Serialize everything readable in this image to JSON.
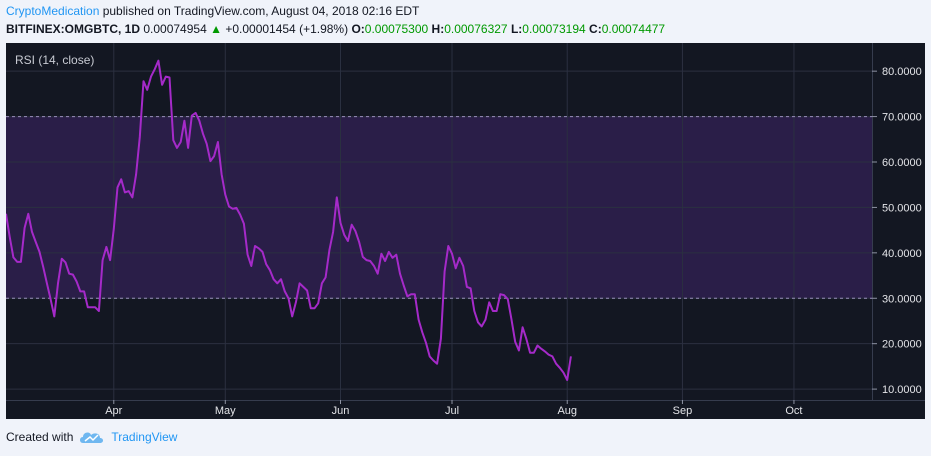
{
  "header": {
    "author": "CryptoMedication",
    "published_text": " published on TradingView.com, August 04, 2018 02:16 EDT"
  },
  "ticker": {
    "symbol": "BITFINEX:OMGBTC, 1D",
    "last": "0.00074954",
    "change": "+0.00001454 (+1.98%)",
    "open_label": "O:",
    "open": "0.00075300",
    "high_label": "H:",
    "high": "0.00076327",
    "low_label": "L:",
    "low": "0.00073194",
    "close_label": "C:",
    "close": "0.00074477"
  },
  "footer": {
    "created_with": "Created with",
    "brand": "TradingView"
  },
  "colors": {
    "background": "#131722",
    "band": "#2a1e48",
    "line": "#a52ac9",
    "grid": "#2b3040",
    "up": "#009900",
    "brand": "#2196f3"
  },
  "chart_data": {
    "type": "line",
    "indicator_label": "RSI (14, close)",
    "y_ticks": [
      "80.0000",
      "70.0000",
      "60.0000",
      "50.0000",
      "40.0000",
      "30.0000",
      "20.0000",
      "10.0000"
    ],
    "ylim": [
      7.6,
      86.2
    ],
    "band": [
      30,
      70
    ],
    "x_ticks": [
      {
        "label": "Apr",
        "date": "2018-04-01"
      },
      {
        "label": "May",
        "date": "2018-05-01"
      },
      {
        "label": "Jun",
        "date": "2018-06-01"
      },
      {
        "label": "Jul",
        "date": "2018-07-01"
      },
      {
        "label": "Aug",
        "date": "2018-08-01"
      },
      {
        "label": "Sep",
        "date": "2018-09-01"
      },
      {
        "label": "Oct",
        "date": "2018-10-01"
      }
    ],
    "xlim": [
      "2018-03-03",
      "2018-10-22"
    ],
    "grid": true,
    "series": [
      {
        "values": [
          {
            "x": "2018-03-03",
            "y": 48.6
          },
          {
            "x": "2018-03-04",
            "y": 43.5
          },
          {
            "x": "2018-03-05",
            "y": 39.0
          },
          {
            "x": "2018-03-06",
            "y": 38.0
          },
          {
            "x": "2018-03-07",
            "y": 38.0
          },
          {
            "x": "2018-03-08",
            "y": 45.5
          },
          {
            "x": "2018-03-09",
            "y": 48.6
          },
          {
            "x": "2018-03-10",
            "y": 44.6
          },
          {
            "x": "2018-03-11",
            "y": 42.4
          },
          {
            "x": "2018-03-12",
            "y": 40.2
          },
          {
            "x": "2018-03-13",
            "y": 36.9
          },
          {
            "x": "2018-03-14",
            "y": 33.3
          },
          {
            "x": "2018-03-15",
            "y": 29.8
          },
          {
            "x": "2018-03-16",
            "y": 26.0
          },
          {
            "x": "2018-03-17",
            "y": 33.3
          },
          {
            "x": "2018-03-18",
            "y": 38.7
          },
          {
            "x": "2018-03-19",
            "y": 37.9
          },
          {
            "x": "2018-03-20",
            "y": 35.4
          },
          {
            "x": "2018-03-21",
            "y": 35.2
          },
          {
            "x": "2018-03-22",
            "y": 33.7
          },
          {
            "x": "2018-03-23",
            "y": 31.5
          },
          {
            "x": "2018-03-24",
            "y": 31.5
          },
          {
            "x": "2018-03-25",
            "y": 28.0
          },
          {
            "x": "2018-03-26",
            "y": 28.0
          },
          {
            "x": "2018-03-27",
            "y": 28.0
          },
          {
            "x": "2018-03-28",
            "y": 27.2
          },
          {
            "x": "2018-03-29",
            "y": 38.4
          },
          {
            "x": "2018-03-30",
            "y": 41.3
          },
          {
            "x": "2018-03-31",
            "y": 38.4
          },
          {
            "x": "2018-04-01",
            "y": 45.3
          },
          {
            "x": "2018-04-02",
            "y": 54.4
          },
          {
            "x": "2018-04-03",
            "y": 56.2
          },
          {
            "x": "2018-04-04",
            "y": 53.3
          },
          {
            "x": "2018-04-05",
            "y": 53.6
          },
          {
            "x": "2018-04-06",
            "y": 52.2
          },
          {
            "x": "2018-04-07",
            "y": 57.3
          },
          {
            "x": "2018-04-08",
            "y": 65.5
          },
          {
            "x": "2018-04-09",
            "y": 77.8
          },
          {
            "x": "2018-04-10",
            "y": 75.9
          },
          {
            "x": "2018-04-11",
            "y": 78.8
          },
          {
            "x": "2018-04-12",
            "y": 80.4
          },
          {
            "x": "2018-04-13",
            "y": 82.3
          },
          {
            "x": "2018-04-14",
            "y": 77.0
          },
          {
            "x": "2018-04-15",
            "y": 78.8
          },
          {
            "x": "2018-04-16",
            "y": 78.6
          },
          {
            "x": "2018-04-17",
            "y": 64.8
          },
          {
            "x": "2018-04-18",
            "y": 63.1
          },
          {
            "x": "2018-04-19",
            "y": 64.4
          },
          {
            "x": "2018-04-20",
            "y": 69.1
          },
          {
            "x": "2018-04-21",
            "y": 63.1
          },
          {
            "x": "2018-04-22",
            "y": 70.2
          },
          {
            "x": "2018-04-23",
            "y": 70.8
          },
          {
            "x": "2018-04-24",
            "y": 69.1
          },
          {
            "x": "2018-04-25",
            "y": 66.2
          },
          {
            "x": "2018-04-26",
            "y": 64.0
          },
          {
            "x": "2018-04-27",
            "y": 60.2
          },
          {
            "x": "2018-04-28",
            "y": 61.3
          },
          {
            "x": "2018-04-29",
            "y": 64.4
          },
          {
            "x": "2018-04-30",
            "y": 57.3
          },
          {
            "x": "2018-05-01",
            "y": 52.8
          },
          {
            "x": "2018-05-02",
            "y": 50.2
          },
          {
            "x": "2018-05-03",
            "y": 49.7
          },
          {
            "x": "2018-05-04",
            "y": 49.9
          },
          {
            "x": "2018-05-05",
            "y": 48.4
          },
          {
            "x": "2018-05-06",
            "y": 46.4
          },
          {
            "x": "2018-05-07",
            "y": 39.6
          },
          {
            "x": "2018-05-08",
            "y": 37.1
          },
          {
            "x": "2018-05-09",
            "y": 41.5
          },
          {
            "x": "2018-05-10",
            "y": 41.0
          },
          {
            "x": "2018-05-11",
            "y": 40.2
          },
          {
            "x": "2018-05-12",
            "y": 37.5
          },
          {
            "x": "2018-05-13",
            "y": 36.2
          },
          {
            "x": "2018-05-14",
            "y": 34.2
          },
          {
            "x": "2018-05-15",
            "y": 33.3
          },
          {
            "x": "2018-05-16",
            "y": 34.2
          },
          {
            "x": "2018-05-17",
            "y": 31.5
          },
          {
            "x": "2018-05-18",
            "y": 30.0
          },
          {
            "x": "2018-05-19",
            "y": 26.0
          },
          {
            "x": "2018-05-20",
            "y": 29.1
          },
          {
            "x": "2018-05-21",
            "y": 33.3
          },
          {
            "x": "2018-05-22",
            "y": 32.5
          },
          {
            "x": "2018-05-23",
            "y": 31.7
          },
          {
            "x": "2018-05-24",
            "y": 27.8
          },
          {
            "x": "2018-05-25",
            "y": 27.8
          },
          {
            "x": "2018-05-26",
            "y": 28.9
          },
          {
            "x": "2018-05-27",
            "y": 33.3
          },
          {
            "x": "2018-05-28",
            "y": 34.6
          },
          {
            "x": "2018-05-29",
            "y": 40.6
          },
          {
            "x": "2018-05-30",
            "y": 44.6
          },
          {
            "x": "2018-05-31",
            "y": 52.2
          },
          {
            "x": "2018-06-01",
            "y": 46.6
          },
          {
            "x": "2018-06-02",
            "y": 44.0
          },
          {
            "x": "2018-06-03",
            "y": 42.6
          },
          {
            "x": "2018-06-04",
            "y": 46.2
          },
          {
            "x": "2018-06-05",
            "y": 44.8
          },
          {
            "x": "2018-06-06",
            "y": 42.4
          },
          {
            "x": "2018-06-07",
            "y": 39.1
          },
          {
            "x": "2018-06-08",
            "y": 38.4
          },
          {
            "x": "2018-06-09",
            "y": 38.2
          },
          {
            "x": "2018-06-10",
            "y": 37.1
          },
          {
            "x": "2018-06-11",
            "y": 35.4
          },
          {
            "x": "2018-06-12",
            "y": 39.8
          },
          {
            "x": "2018-06-13",
            "y": 38.2
          },
          {
            "x": "2018-06-14",
            "y": 40.2
          },
          {
            "x": "2018-06-15",
            "y": 38.9
          },
          {
            "x": "2018-06-16",
            "y": 39.6
          },
          {
            "x": "2018-06-17",
            "y": 35.4
          },
          {
            "x": "2018-06-18",
            "y": 32.8
          },
          {
            "x": "2018-06-19",
            "y": 30.4
          },
          {
            "x": "2018-06-20",
            "y": 30.9
          },
          {
            "x": "2018-06-21",
            "y": 30.9
          },
          {
            "x": "2018-06-22",
            "y": 25.3
          },
          {
            "x": "2018-06-23",
            "y": 22.5
          },
          {
            "x": "2018-06-24",
            "y": 20.2
          },
          {
            "x": "2018-06-25",
            "y": 17.2
          },
          {
            "x": "2018-06-26",
            "y": 16.3
          },
          {
            "x": "2018-06-27",
            "y": 15.6
          },
          {
            "x": "2018-06-28",
            "y": 21.1
          },
          {
            "x": "2018-06-29",
            "y": 35.9
          },
          {
            "x": "2018-06-30",
            "y": 41.5
          },
          {
            "x": "2018-07-01",
            "y": 39.8
          },
          {
            "x": "2018-07-02",
            "y": 36.6
          },
          {
            "x": "2018-07-03",
            "y": 38.9
          },
          {
            "x": "2018-07-04",
            "y": 37.1
          },
          {
            "x": "2018-07-05",
            "y": 32.5
          },
          {
            "x": "2018-07-06",
            "y": 32.2
          },
          {
            "x": "2018-07-07",
            "y": 27.2
          },
          {
            "x": "2018-07-08",
            "y": 24.7
          },
          {
            "x": "2018-07-09",
            "y": 23.8
          },
          {
            "x": "2018-07-10",
            "y": 25.3
          },
          {
            "x": "2018-07-11",
            "y": 29.1
          },
          {
            "x": "2018-07-12",
            "y": 27.2
          },
          {
            "x": "2018-07-13",
            "y": 27.2
          },
          {
            "x": "2018-07-14",
            "y": 30.9
          },
          {
            "x": "2018-07-15",
            "y": 30.7
          },
          {
            "x": "2018-07-16",
            "y": 29.8
          },
          {
            "x": "2018-07-17",
            "y": 25.3
          },
          {
            "x": "2018-07-18",
            "y": 20.4
          },
          {
            "x": "2018-07-19",
            "y": 18.5
          },
          {
            "x": "2018-07-20",
            "y": 23.6
          },
          {
            "x": "2018-07-21",
            "y": 21.1
          },
          {
            "x": "2018-07-22",
            "y": 18.0
          },
          {
            "x": "2018-07-23",
            "y": 18.0
          },
          {
            "x": "2018-07-24",
            "y": 19.6
          },
          {
            "x": "2018-07-25",
            "y": 18.9
          },
          {
            "x": "2018-07-26",
            "y": 18.3
          },
          {
            "x": "2018-07-27",
            "y": 17.6
          },
          {
            "x": "2018-07-28",
            "y": 17.2
          },
          {
            "x": "2018-07-29",
            "y": 15.6
          },
          {
            "x": "2018-07-30",
            "y": 14.7
          },
          {
            "x": "2018-07-31",
            "y": 13.6
          },
          {
            "x": "2018-08-01",
            "y": 12.0
          },
          {
            "x": "2018-08-02",
            "y": 17.2
          }
        ]
      }
    ]
  }
}
